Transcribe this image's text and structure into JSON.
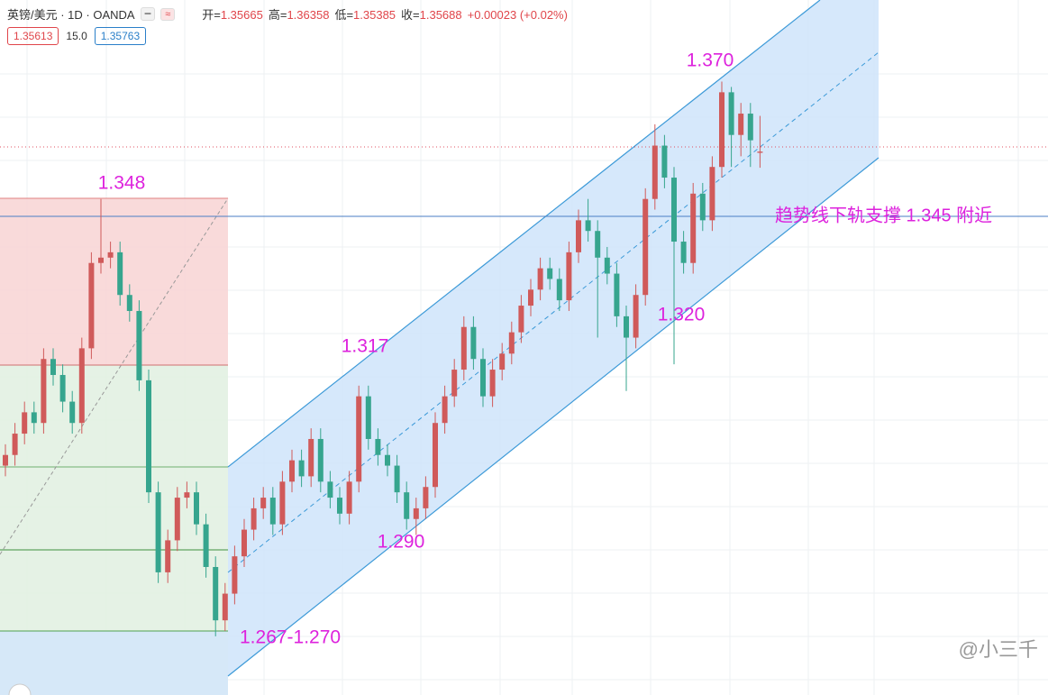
{
  "header": {
    "symbol": "英镑/美元 · 1D · OANDA",
    "ohlc": [
      {
        "key": "开=",
        "value": "1.35665"
      },
      {
        "key": "高=",
        "value": "1.36358"
      },
      {
        "key": "低=",
        "value": "1.35385"
      },
      {
        "key": "收=",
        "value": "1.35688"
      },
      {
        "key": "",
        "value": "+0.00023 (+0.02%)"
      }
    ],
    "bid": "1.35613",
    "spread": "15.0",
    "ask": "1.35763"
  },
  "chart_data": {
    "type": "candlestick",
    "up_color": "#d05a5a",
    "down_color": "#36a58e",
    "ylim": [
      1.255,
      1.3853
    ],
    "open": [
      1.298,
      1.3,
      1.304,
      1.308,
      1.306,
      1.318,
      1.315,
      1.31,
      1.306,
      1.32,
      1.336,
      1.337,
      1.338,
      1.33,
      1.327,
      1.314,
      1.293,
      1.278,
      1.284,
      1.292,
      1.293,
      1.287,
      1.279,
      1.269,
      1.274,
      1.281,
      1.286,
      1.29,
      1.292,
      1.287,
      1.295,
      1.299,
      1.296,
      1.303,
      1.295,
      1.292,
      1.289,
      1.295,
      1.311,
      1.303,
      1.3,
      1.298,
      1.293,
      1.288,
      1.29,
      1.294,
      1.306,
      1.311,
      1.316,
      1.324,
      1.318,
      1.311,
      1.316,
      1.319,
      1.323,
      1.328,
      1.331,
      1.335,
      1.333,
      1.329,
      1.338,
      1.344,
      1.342,
      1.337,
      1.334,
      1.326,
      1.322,
      1.33,
      1.348,
      1.358,
      1.352,
      1.34,
      1.336,
      1.349,
      1.344,
      1.354,
      1.368,
      1.36,
      1.364,
      1.35665
    ],
    "high": [
      1.302,
      1.306,
      1.31,
      1.31,
      1.32,
      1.32,
      1.317,
      1.312,
      1.322,
      1.338,
      1.348,
      1.34,
      1.34,
      1.332,
      1.329,
      1.316,
      1.295,
      1.286,
      1.294,
      1.295,
      1.295,
      1.289,
      1.281,
      1.276,
      1.283,
      1.288,
      1.292,
      1.294,
      1.294,
      1.297,
      1.301,
      1.301,
      1.305,
      1.305,
      1.297,
      1.294,
      1.297,
      1.313,
      1.313,
      1.305,
      1.302,
      1.3,
      1.295,
      1.292,
      1.296,
      1.308,
      1.313,
      1.318,
      1.326,
      1.326,
      1.32,
      1.318,
      1.321,
      1.325,
      1.33,
      1.333,
      1.337,
      1.337,
      1.335,
      1.34,
      1.346,
      1.348,
      1.344,
      1.339,
      1.336,
      1.328,
      1.332,
      1.35,
      1.362,
      1.36,
      1.354,
      1.342,
      1.351,
      1.351,
      1.356,
      1.37,
      1.369,
      1.366,
      1.366,
      1.36358
    ],
    "low": [
      1.296,
      1.298,
      1.302,
      1.304,
      1.304,
      1.313,
      1.308,
      1.304,
      1.304,
      1.318,
      1.334,
      1.335,
      1.328,
      1.325,
      1.312,
      1.291,
      1.276,
      1.276,
      1.282,
      1.29,
      1.285,
      1.277,
      1.266,
      1.267,
      1.272,
      1.279,
      1.284,
      1.288,
      1.285,
      1.285,
      1.293,
      1.294,
      1.294,
      1.293,
      1.29,
      1.287,
      1.287,
      1.293,
      1.301,
      1.298,
      1.296,
      1.291,
      1.286,
      1.285,
      1.288,
      1.292,
      1.304,
      1.309,
      1.314,
      1.316,
      1.309,
      1.309,
      1.314,
      1.317,
      1.321,
      1.326,
      1.329,
      1.331,
      1.327,
      1.327,
      1.336,
      1.34,
      1.322,
      1.332,
      1.324,
      1.312,
      1.32,
      1.328,
      1.346,
      1.35,
      1.317,
      1.334,
      1.334,
      1.342,
      1.342,
      1.352,
      1.354,
      1.356,
      1.354,
      1.35385
    ],
    "close": [
      1.3,
      1.304,
      1.308,
      1.306,
      1.318,
      1.315,
      1.31,
      1.306,
      1.32,
      1.336,
      1.337,
      1.338,
      1.33,
      1.327,
      1.314,
      1.293,
      1.278,
      1.284,
      1.292,
      1.293,
      1.287,
      1.279,
      1.269,
      1.274,
      1.281,
      1.286,
      1.29,
      1.292,
      1.287,
      1.295,
      1.299,
      1.296,
      1.303,
      1.295,
      1.292,
      1.289,
      1.295,
      1.311,
      1.303,
      1.3,
      1.298,
      1.293,
      1.288,
      1.29,
      1.294,
      1.306,
      1.311,
      1.316,
      1.324,
      1.318,
      1.311,
      1.316,
      1.319,
      1.323,
      1.328,
      1.331,
      1.335,
      1.333,
      1.329,
      1.338,
      1.344,
      1.342,
      1.337,
      1.334,
      1.326,
      1.322,
      1.33,
      1.348,
      1.358,
      1.352,
      1.34,
      1.336,
      1.349,
      1.344,
      1.354,
      1.368,
      1.36,
      1.364,
      1.359,
      1.35688
    ],
    "annotations": [
      "1.348",
      "1.317",
      "1.290",
      "1.267-1.270",
      "1.320",
      "1.370",
      "趋势线下轨支撑 1.345 附近"
    ]
  },
  "watermark": "@小三千"
}
